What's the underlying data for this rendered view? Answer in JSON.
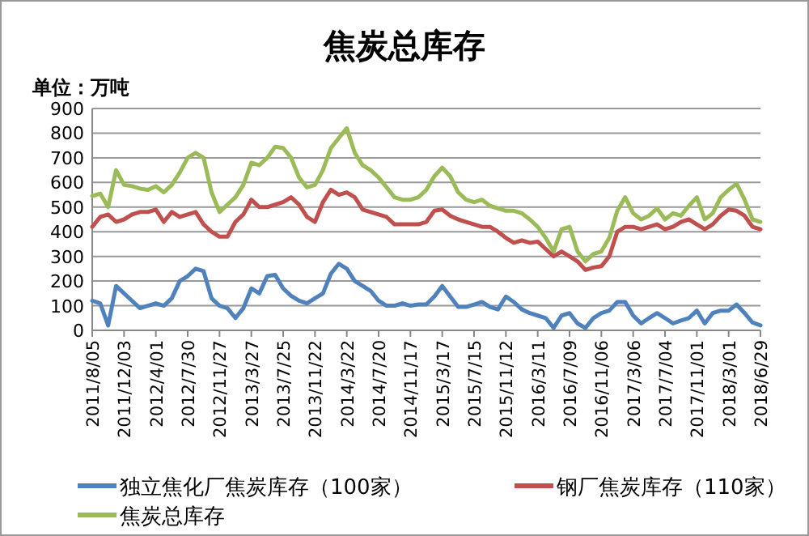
{
  "chart_data": {
    "type": "line",
    "title": "焦炭总库存",
    "annotations": [
      "单位：万吨"
    ],
    "categories": [
      "2011/8/05",
      null,
      null,
      null,
      "2011/12/03",
      null,
      null,
      null,
      "2012/4/01",
      null,
      null,
      null,
      "2012/7/30",
      null,
      null,
      null,
      "2012/11/27",
      null,
      null,
      null,
      "2013/3/27",
      null,
      null,
      null,
      "2013/7/25",
      null,
      null,
      null,
      "2013/11/22",
      null,
      null,
      null,
      "2014/3/22",
      null,
      null,
      null,
      "2014/7/20",
      null,
      null,
      null,
      "2014/11/17",
      null,
      null,
      null,
      "2015/3/17",
      null,
      null,
      null,
      "2015/7/15",
      null,
      null,
      null,
      "2015/11/12",
      null,
      null,
      null,
      "2016/3/11",
      null,
      null,
      null,
      "2016/7/09",
      null,
      null,
      null,
      "2016/11/06",
      null,
      null,
      null,
      "2017/3/06",
      null,
      null,
      null,
      "2017/7/04",
      null,
      null,
      null,
      "2017/11/01",
      null,
      null,
      null,
      "2018/3/01",
      null,
      null,
      null,
      "2018/6/29"
    ],
    "series": [
      {
        "name": "独立焦化厂焦炭库存（100家）",
        "color": "#4f81bd",
        "values": [
          120,
          110,
          20,
          180,
          150,
          120,
          90,
          100,
          110,
          100,
          130,
          200,
          220,
          250,
          240,
          130,
          100,
          90,
          50,
          90,
          170,
          150,
          220,
          225,
          170,
          140,
          120,
          110,
          130,
          150,
          230,
          270,
          250,
          200,
          180,
          160,
          120,
          100,
          100,
          110,
          100,
          105,
          105,
          137,
          180,
          137,
          95,
          95,
          105,
          115,
          95,
          85,
          137,
          115,
          85,
          70,
          60,
          50,
          10,
          60,
          70,
          28,
          10,
          50,
          70,
          80,
          115,
          115,
          60,
          28,
          50,
          70,
          50,
          28,
          40,
          50,
          80,
          28,
          70,
          80,
          80,
          105,
          70,
          32,
          20
        ]
      },
      {
        "name": "钢厂焦炭库存（110家）",
        "color": "#c0504d",
        "values": [
          420,
          460,
          470,
          440,
          450,
          470,
          480,
          480,
          490,
          440,
          480,
          460,
          470,
          480,
          430,
          400,
          380,
          380,
          440,
          470,
          530,
          500,
          500,
          510,
          520,
          540,
          510,
          460,
          440,
          520,
          570,
          550,
          560,
          540,
          490,
          480,
          470,
          460,
          430,
          430,
          430,
          430,
          440,
          485,
          490,
          465,
          450,
          440,
          430,
          420,
          420,
          400,
          375,
          355,
          365,
          355,
          360,
          330,
          300,
          320,
          300,
          280,
          245,
          255,
          260,
          300,
          400,
          420,
          420,
          410,
          420,
          430,
          410,
          420,
          440,
          450,
          430,
          410,
          430,
          465,
          490,
          485,
          465,
          420,
          410
        ]
      },
      {
        "name": "焦炭总库存",
        "color": "#9bbb59",
        "values": [
          545,
          555,
          500,
          650,
          590,
          585,
          575,
          570,
          585,
          560,
          590,
          640,
          700,
          720,
          700,
          560,
          480,
          510,
          540,
          590,
          680,
          670,
          700,
          745,
          740,
          700,
          620,
          580,
          590,
          650,
          740,
          780,
          820,
          720,
          670,
          650,
          620,
          580,
          540,
          530,
          530,
          540,
          570,
          625,
          660,
          625,
          560,
          530,
          520,
          530,
          505,
          495,
          485,
          485,
          475,
          450,
          420,
          375,
          320,
          410,
          420,
          320,
          280,
          310,
          320,
          375,
          485,
          540,
          475,
          450,
          465,
          495,
          450,
          475,
          465,
          505,
          540,
          450,
          475,
          540,
          570,
          595,
          530,
          450,
          440
        ]
      }
    ],
    "ylim": [
      0,
      900
    ],
    "yticks": [
      0,
      100,
      200,
      300,
      400,
      500,
      600,
      700,
      800,
      900
    ],
    "grid": "y",
    "legend": "bottom",
    "marker": "none",
    "line_style": "solid"
  }
}
